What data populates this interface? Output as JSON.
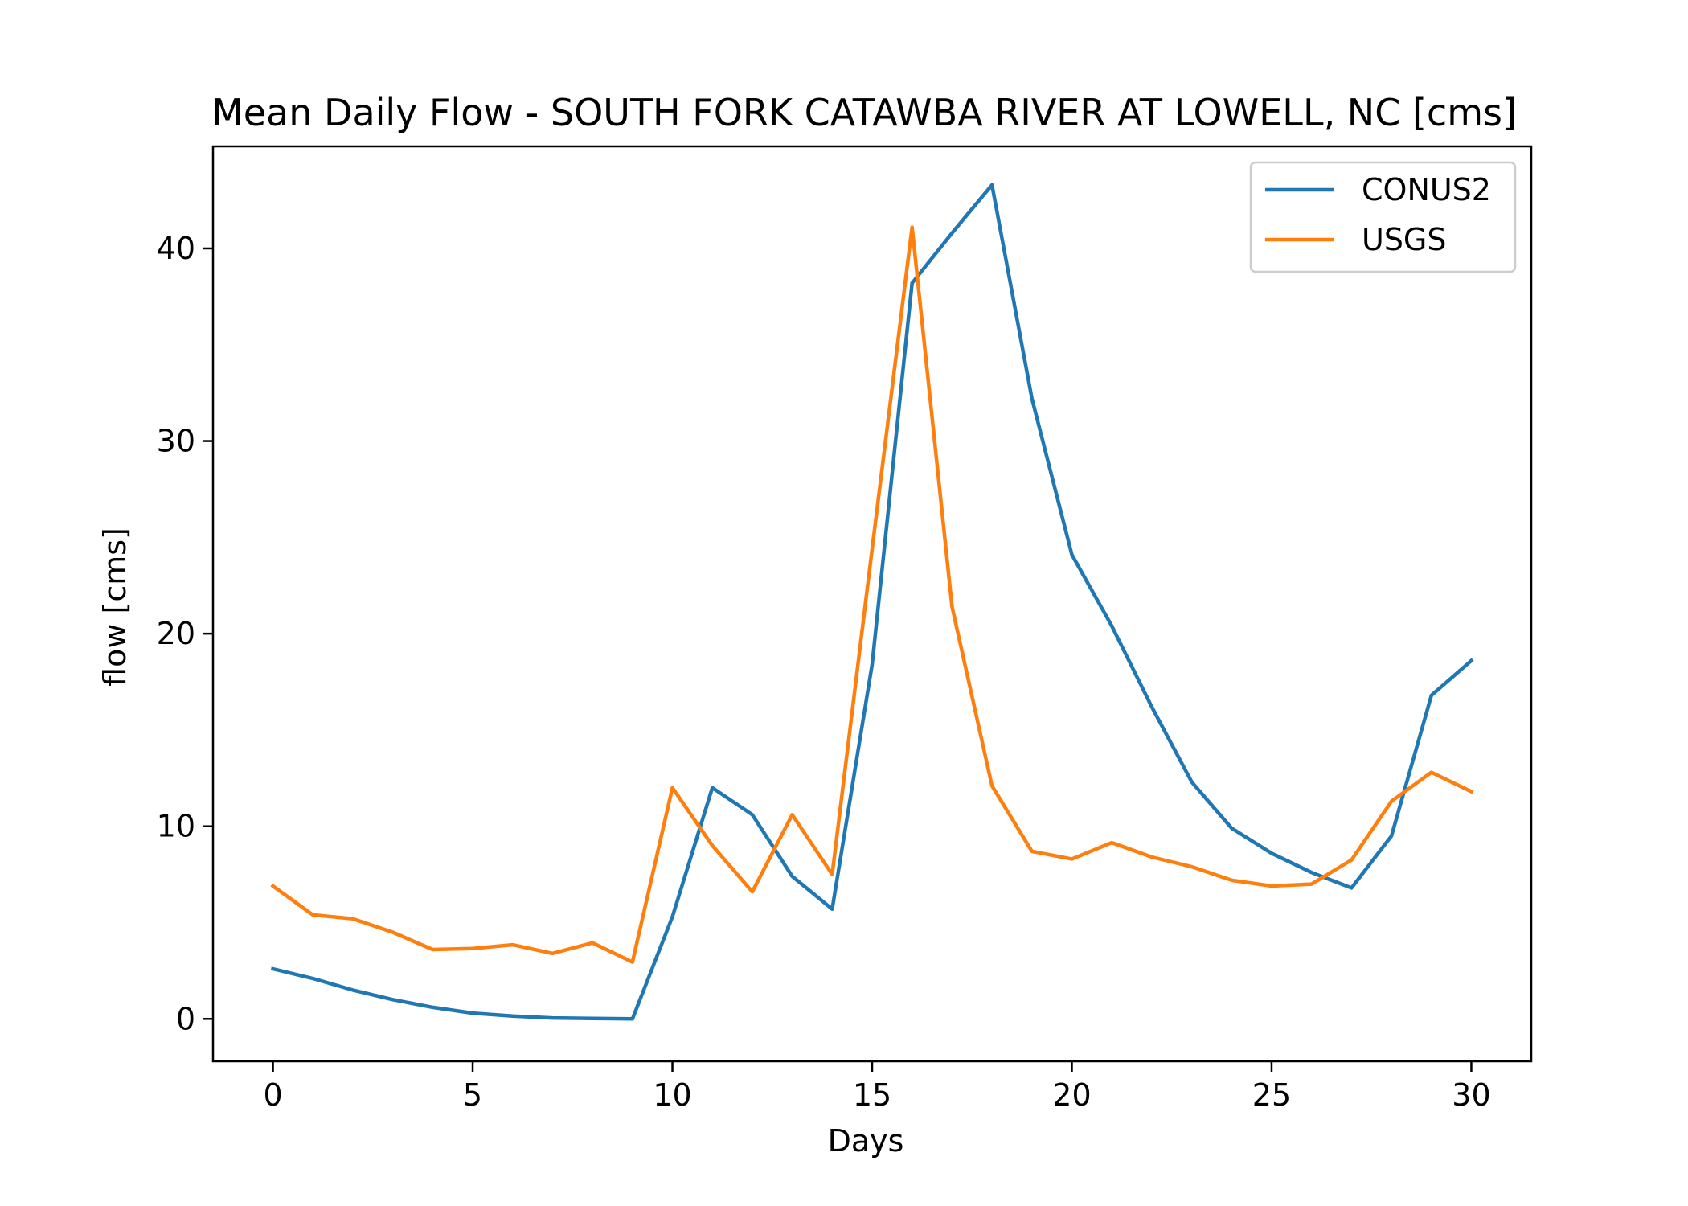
{
  "chart_data": {
    "type": "line",
    "title": "Mean Daily Flow - SOUTH FORK CATAWBA RIVER AT LOWELL, NC [cms]",
    "xlabel": "Days",
    "ylabel": "flow [cms]",
    "xlim": [
      -1.5,
      31.5
    ],
    "ylim": [
      -2.2,
      45.3
    ],
    "xticks": [
      0,
      5,
      10,
      15,
      20,
      25,
      30
    ],
    "yticks": [
      0,
      10,
      20,
      30,
      40
    ],
    "grid": false,
    "legend_position": "top-right",
    "x": [
      0,
      1,
      2,
      3,
      4,
      5,
      6,
      7,
      8,
      9,
      10,
      11,
      12,
      13,
      14,
      15,
      16,
      17,
      18,
      19,
      20,
      21,
      22,
      23,
      24,
      25,
      26,
      27,
      28,
      29,
      30
    ],
    "series": [
      {
        "name": "CONUS2",
        "color": "#1f77b4",
        "values": [
          2.6,
          2.1,
          1.5,
          1.0,
          0.6,
          0.3,
          0.15,
          0.05,
          0.02,
          0.0,
          5.3,
          12.0,
          10.6,
          7.4,
          5.7,
          18.4,
          38.2,
          40.8,
          43.3,
          32.2,
          24.1,
          20.4,
          16.2,
          12.3,
          9.9,
          8.6,
          7.6,
          6.8,
          9.5,
          16.8,
          18.6
        ]
      },
      {
        "name": "USGS",
        "color": "#ff7f0e",
        "values": [
          6.9,
          5.4,
          5.2,
          4.5,
          3.6,
          3.65,
          3.85,
          3.4,
          3.95,
          2.95,
          12.0,
          9.0,
          6.6,
          10.6,
          7.5,
          24.4,
          41.1,
          21.4,
          12.1,
          8.7,
          8.3,
          9.15,
          8.4,
          7.9,
          7.2,
          6.9,
          7.0,
          8.25,
          11.3,
          12.8,
          11.8
        ]
      }
    ]
  }
}
